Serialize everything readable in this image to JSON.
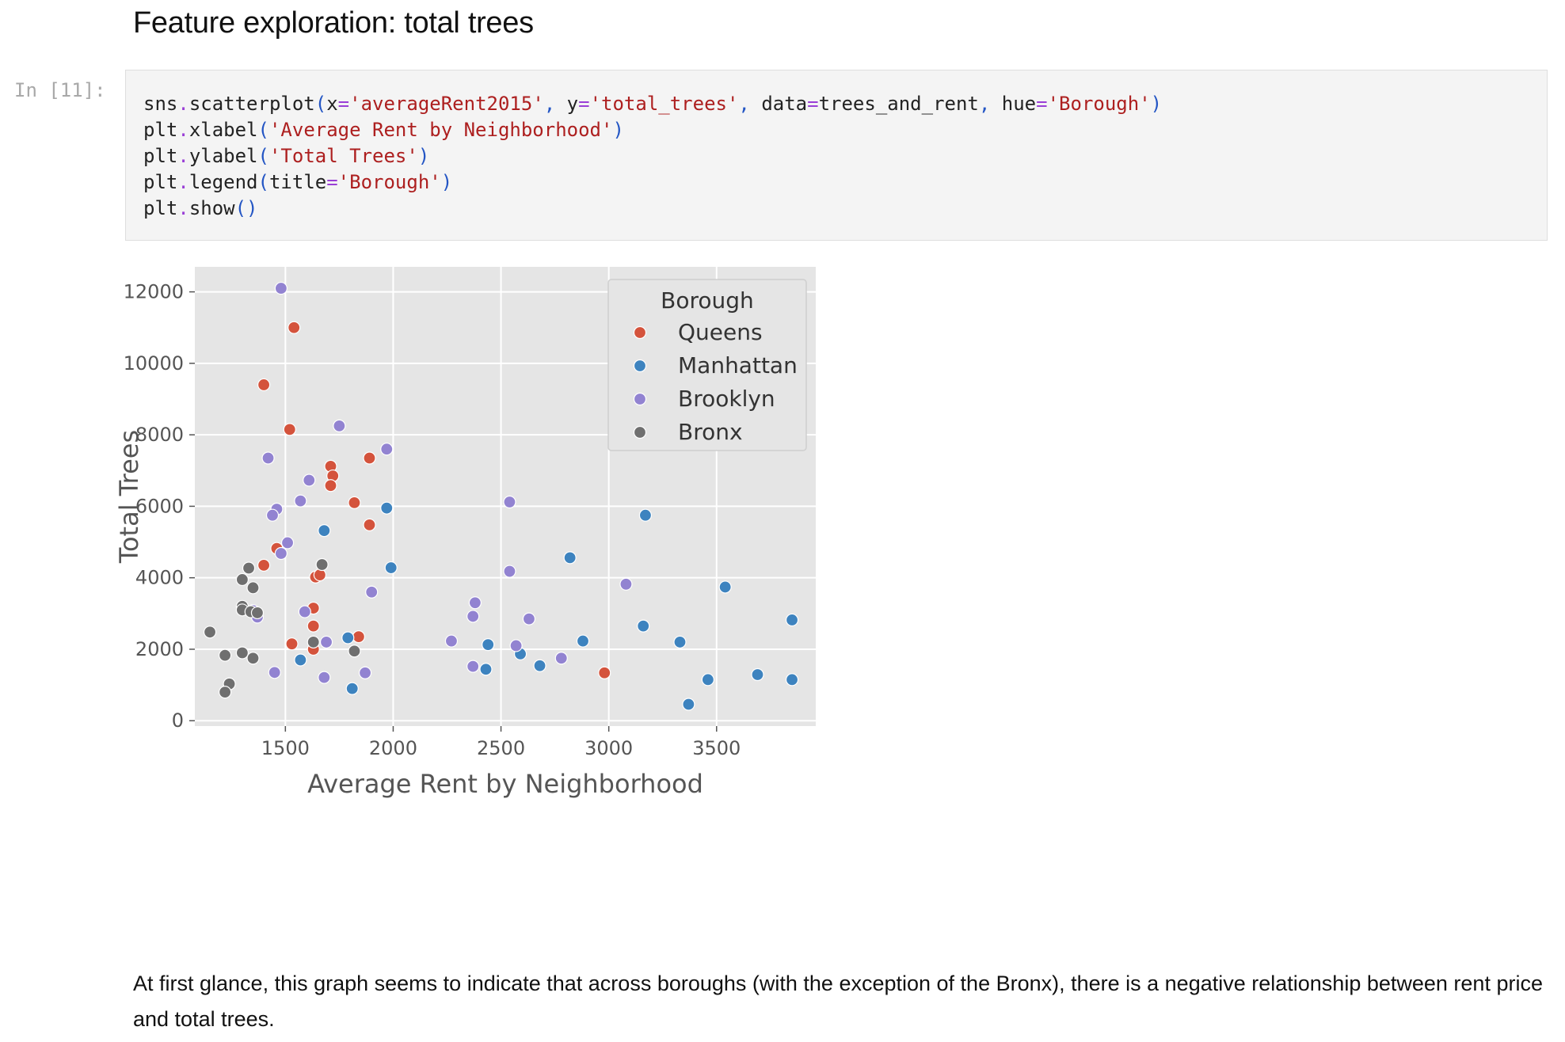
{
  "heading": "Feature exploration: total trees",
  "cell": {
    "prompt": "In [11]:",
    "code_lines": [
      [
        {
          "t": "sns",
          "c": ""
        },
        {
          "t": ".",
          "c": "op"
        },
        {
          "t": "scatterplot",
          "c": ""
        },
        {
          "t": "(",
          "c": "par"
        },
        {
          "t": "x",
          "c": ""
        },
        {
          "t": "=",
          "c": "op"
        },
        {
          "t": "'averageRent2015'",
          "c": "str"
        },
        {
          "t": ", ",
          "c": "par"
        },
        {
          "t": "y",
          "c": ""
        },
        {
          "t": "=",
          "c": "op"
        },
        {
          "t": "'total_trees'",
          "c": "str"
        },
        {
          "t": ", ",
          "c": "par"
        },
        {
          "t": "data",
          "c": ""
        },
        {
          "t": "=",
          "c": "op"
        },
        {
          "t": "trees_and_rent",
          "c": ""
        },
        {
          "t": ", ",
          "c": "par"
        },
        {
          "t": "hue",
          "c": ""
        },
        {
          "t": "=",
          "c": "op"
        },
        {
          "t": "'Borough'",
          "c": "str"
        },
        {
          "t": ")",
          "c": "par"
        }
      ],
      [
        {
          "t": "plt",
          "c": ""
        },
        {
          "t": ".",
          "c": "op"
        },
        {
          "t": "xlabel",
          "c": ""
        },
        {
          "t": "(",
          "c": "par"
        },
        {
          "t": "'Average Rent by Neighborhood'",
          "c": "str"
        },
        {
          "t": ")",
          "c": "par"
        }
      ],
      [
        {
          "t": "plt",
          "c": ""
        },
        {
          "t": ".",
          "c": "op"
        },
        {
          "t": "ylabel",
          "c": ""
        },
        {
          "t": "(",
          "c": "par"
        },
        {
          "t": "'Total Trees'",
          "c": "str"
        },
        {
          "t": ")",
          "c": "par"
        }
      ],
      [
        {
          "t": "plt",
          "c": ""
        },
        {
          "t": ".",
          "c": "op"
        },
        {
          "t": "legend",
          "c": ""
        },
        {
          "t": "(",
          "c": "par"
        },
        {
          "t": "title",
          "c": ""
        },
        {
          "t": "=",
          "c": "op"
        },
        {
          "t": "'Borough'",
          "c": "str"
        },
        {
          "t": ")",
          "c": "par"
        }
      ],
      [
        {
          "t": "plt",
          "c": ""
        },
        {
          "t": ".",
          "c": "op"
        },
        {
          "t": "show",
          "c": ""
        },
        {
          "t": "()",
          "c": "par"
        }
      ]
    ]
  },
  "chart_data": {
    "type": "scatter",
    "xlabel": "Average Rent by Neighborhood",
    "ylabel": "Total Trees",
    "xlim": [
      1080,
      3960
    ],
    "ylim": [
      -150,
      12700
    ],
    "xticks": [
      1500,
      2000,
      2500,
      3000,
      3500
    ],
    "yticks": [
      0,
      2000,
      4000,
      6000,
      8000,
      10000,
      12000
    ],
    "grid": true,
    "legend": {
      "title": "Borough",
      "placement": "top-right"
    },
    "series": [
      {
        "name": "Queens",
        "color": "#d4533c",
        "points": [
          [
            1540,
            11000
          ],
          [
            1400,
            9400
          ],
          [
            1520,
            8150
          ],
          [
            1890,
            7350
          ],
          [
            1710,
            7120
          ],
          [
            1720,
            6850
          ],
          [
            1710,
            6580
          ],
          [
            1820,
            6100
          ],
          [
            1890,
            5480
          ],
          [
            1460,
            4820
          ],
          [
            1400,
            4350
          ],
          [
            1640,
            4020
          ],
          [
            1660,
            4080
          ],
          [
            1630,
            3150
          ],
          [
            1630,
            2650
          ],
          [
            1530,
            2150
          ],
          [
            1630,
            2000
          ],
          [
            1840,
            2350
          ],
          [
            2980,
            1340
          ]
        ]
      },
      {
        "name": "Manhattan",
        "color": "#3d83bf",
        "points": [
          [
            1970,
            5950
          ],
          [
            1680,
            5320
          ],
          [
            1990,
            4280
          ],
          [
            3170,
            5750
          ],
          [
            2820,
            4560
          ],
          [
            3540,
            3740
          ],
          [
            3160,
            2650
          ],
          [
            3850,
            2820
          ],
          [
            2880,
            2230
          ],
          [
            3330,
            2200
          ],
          [
            2440,
            2130
          ],
          [
            1790,
            2320
          ],
          [
            2590,
            1870
          ],
          [
            2680,
            1540
          ],
          [
            2430,
            1440
          ],
          [
            1570,
            1700
          ],
          [
            1810,
            900
          ],
          [
            3460,
            1150
          ],
          [
            3690,
            1290
          ],
          [
            3850,
            1150
          ],
          [
            3370,
            460
          ]
        ]
      },
      {
        "name": "Brooklyn",
        "color": "#9283d1",
        "points": [
          [
            1480,
            12100
          ],
          [
            1750,
            8250
          ],
          [
            1970,
            7600
          ],
          [
            1420,
            7350
          ],
          [
            1610,
            6730
          ],
          [
            1570,
            6150
          ],
          [
            2540,
            6120
          ],
          [
            1460,
            5920
          ],
          [
            1440,
            5750
          ],
          [
            1510,
            4980
          ],
          [
            1480,
            4680
          ],
          [
            2540,
            4180
          ],
          [
            3080,
            3820
          ],
          [
            1900,
            3600
          ],
          [
            2380,
            3300
          ],
          [
            1590,
            3050
          ],
          [
            1350,
            3080
          ],
          [
            1370,
            2900
          ],
          [
            2370,
            2920
          ],
          [
            2630,
            2850
          ],
          [
            2270,
            2230
          ],
          [
            1690,
            2200
          ],
          [
            2570,
            2100
          ],
          [
            2780,
            1750
          ],
          [
            2370,
            1520
          ],
          [
            1450,
            1350
          ],
          [
            1870,
            1340
          ],
          [
            1680,
            1210
          ]
        ]
      },
      {
        "name": "Bronx",
        "color": "#6f6f6f",
        "points": [
          [
            1330,
            4270
          ],
          [
            1670,
            4370
          ],
          [
            1300,
            3950
          ],
          [
            1350,
            3720
          ],
          [
            1300,
            3200
          ],
          [
            1300,
            3100
          ],
          [
            1340,
            3050
          ],
          [
            1370,
            3020
          ],
          [
            1150,
            2480
          ],
          [
            1630,
            2200
          ],
          [
            1300,
            1900
          ],
          [
            1820,
            1950
          ],
          [
            1220,
            1830
          ],
          [
            1350,
            1750
          ],
          [
            1240,
            1030
          ],
          [
            1220,
            800
          ]
        ]
      }
    ]
  },
  "explanation": "At first glance, this graph seems to indicate that across boroughs (with the exception of the Bronx), there is a negative relationship between rent price and total trees."
}
